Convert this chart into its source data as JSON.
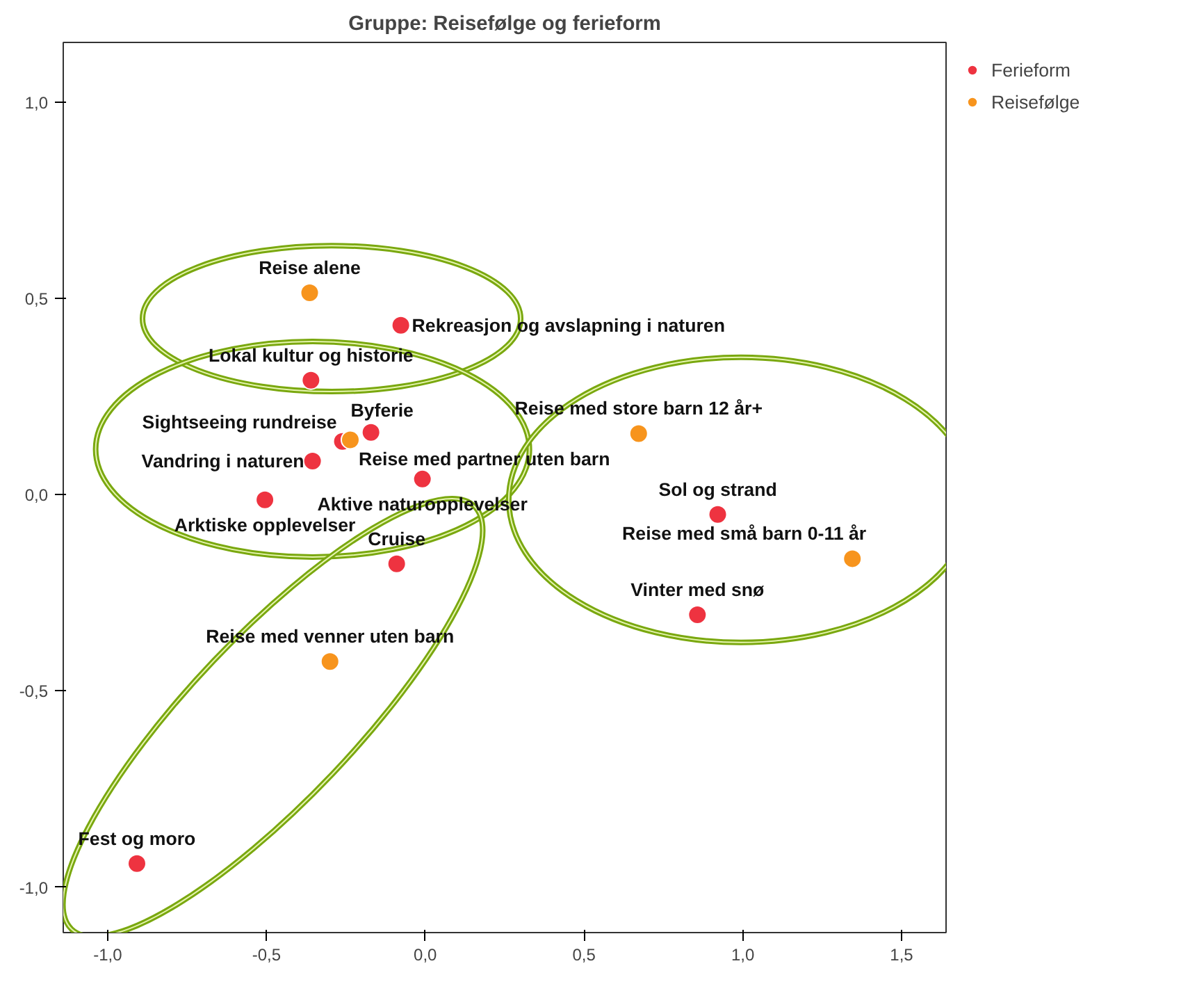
{
  "chart_data": {
    "type": "scatter",
    "title": "Gruppe: Reisefølge og ferieform",
    "xlim": [
      -1.14,
      1.64
    ],
    "ylim": [
      -1.116,
      1.153
    ],
    "xticks": [
      {
        "value": -1.0,
        "label": "-1,0"
      },
      {
        "value": -0.5,
        "label": "-0,5"
      },
      {
        "value": 0.0,
        "label": "0,0"
      },
      {
        "value": 0.5,
        "label": "0,5"
      },
      {
        "value": 1.0,
        "label": "1,0"
      },
      {
        "value": 1.5,
        "label": "1,5"
      }
    ],
    "yticks": [
      {
        "value": -1.0,
        "label": "-1,0"
      },
      {
        "value": -0.5,
        "label": "-0,5"
      },
      {
        "value": 0.0,
        "label": "0,0"
      },
      {
        "value": 0.5,
        "label": "0,5"
      },
      {
        "value": 1.0,
        "label": "1,0"
      }
    ],
    "grid": false,
    "legend": "top right",
    "marker": "circle",
    "series": [
      {
        "name": "Ferieform",
        "color": "#ee3340",
        "x": [
          -0.077,
          -0.36,
          -0.171,
          -0.261,
          -0.355,
          -0.505,
          -0.009,
          -0.09,
          0.921,
          0.857,
          -0.908
        ],
        "values": [
          0.432,
          0.292,
          0.159,
          0.136,
          0.086,
          -0.013,
          0.04,
          -0.176,
          -0.05,
          -0.306,
          -0.94
        ]
      },
      {
        "name": "Reisefølge",
        "color": "#f7941d",
        "x": [
          -0.364,
          -0.236,
          0.672,
          1.345,
          -0.3
        ],
        "values": [
          0.515,
          0.14,
          0.156,
          -0.163,
          -0.425
        ]
      }
    ],
    "annotations": [
      {
        "text": "Rekreasjon og avslapning i naturen",
        "x": -0.077,
        "y": 0.432
      },
      {
        "text": "Lokal kultur og historie",
        "x": -0.36,
        "y": 0.292
      },
      {
        "text": "Byferie",
        "x": -0.171,
        "y": 0.159
      },
      {
        "text": "Sightseeing rundreise",
        "x": -0.261,
        "y": 0.136
      },
      {
        "text": "Vandring i naturen",
        "x": -0.355,
        "y": 0.086
      },
      {
        "text": "Arktiske opplevelser",
        "x": -0.505,
        "y": -0.013
      },
      {
        "text": "Aktive naturopplevelser",
        "x": -0.009,
        "y": 0.04
      },
      {
        "text": "Cruise",
        "x": -0.09,
        "y": -0.176
      },
      {
        "text": "Sol og strand",
        "x": 0.921,
        "y": -0.05
      },
      {
        "text": "Vinter med snø",
        "x": 0.857,
        "y": -0.306
      },
      {
        "text": "Fest og moro",
        "x": -0.908,
        "y": -0.94
      },
      {
        "text": "Reise alene",
        "x": -0.364,
        "y": 0.515
      },
      {
        "text": "Reise med partner uten barn",
        "x": -0.236,
        "y": 0.14
      },
      {
        "text": "Reise med store barn 12 år+",
        "x": 0.672,
        "y": 0.156
      },
      {
        "text": "Reise med små barn 0-11 år",
        "x": 1.345,
        "y": -0.163
      },
      {
        "text": "Reise med venner uten barn",
        "x": -0.3,
        "y": -0.425
      }
    ]
  }
}
